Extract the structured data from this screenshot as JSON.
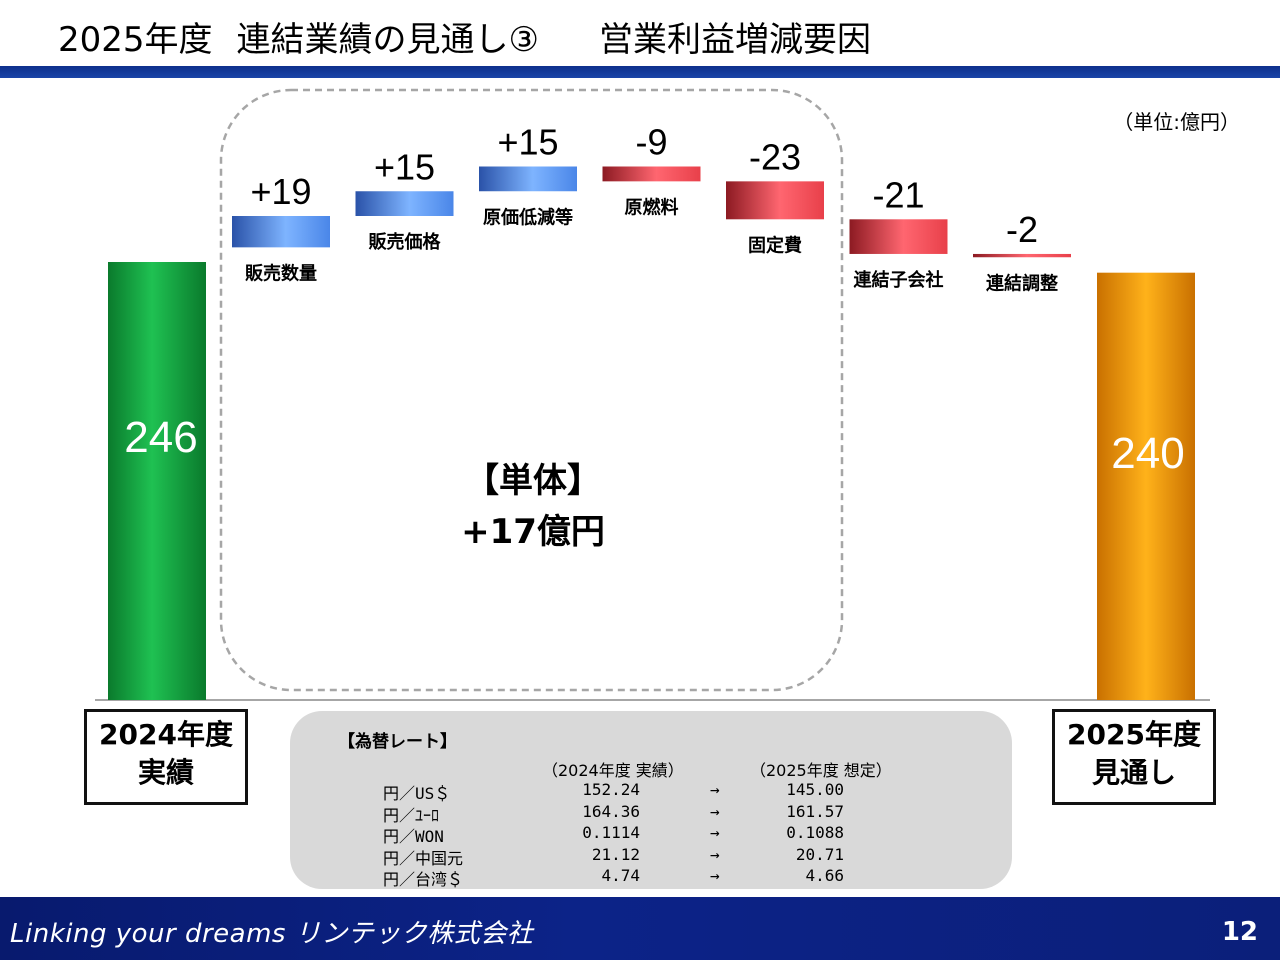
{
  "header": {
    "title_part1": "2025年度",
    "title_part2": "連結業績の見通し③",
    "title_part3": "営業利益増減要因",
    "unit": "（単位:億円）"
  },
  "chart_data": {
    "type": "bar",
    "subtype": "waterfall",
    "start": {
      "label_line1": "2024年度",
      "label_line2": "実績",
      "value": 246,
      "color": "#0f9a3a"
    },
    "end": {
      "label_line1": "2025年度",
      "label_line2": "見通し",
      "value": 240,
      "color": "#f39a00"
    },
    "steps": [
      {
        "name": "販売数量",
        "delta": 19,
        "delta_label": "+19"
      },
      {
        "name": "販売価格",
        "delta": 15,
        "delta_label": "+15"
      },
      {
        "name": "原価低減等",
        "delta": 15,
        "delta_label": "+15"
      },
      {
        "name": "原燃料",
        "delta": -9,
        "delta_label": "-9"
      },
      {
        "name": "固定費",
        "delta": -23,
        "delta_label": "-23"
      },
      {
        "name": "連結子会社",
        "delta": -21,
        "delta_label": "-21"
      },
      {
        "name": "連結調整",
        "delta": -2,
        "delta_label": "-2"
      }
    ],
    "positive_color": "#4a86e8",
    "negative_color": "#e8404a",
    "group_annotation": {
      "line1": "【単体】",
      "line2": "+17億円"
    }
  },
  "fx": {
    "title": "【為替レート】",
    "col_2024": "（2024年度 実績）",
    "col_2025": "（2025年度 想定）",
    "arrow": "→",
    "rows": [
      {
        "pair": "円／US＄",
        "v2024": "152.24",
        "v2025": "145.00"
      },
      {
        "pair": "円／ﾕｰﾛ",
        "v2024": "164.36",
        "v2025": "161.57"
      },
      {
        "pair": "円／WON",
        "v2024": "0.1114",
        "v2025": "0.1088"
      },
      {
        "pair": "円／中国元",
        "v2024": "21.12",
        "v2025": "20.71"
      },
      {
        "pair": "円／台湾＄",
        "v2024": "4.74",
        "v2025": "4.66"
      }
    ]
  },
  "footer": {
    "slogan": "Linking your dreams リンテック株式会社",
    "page": "12"
  }
}
